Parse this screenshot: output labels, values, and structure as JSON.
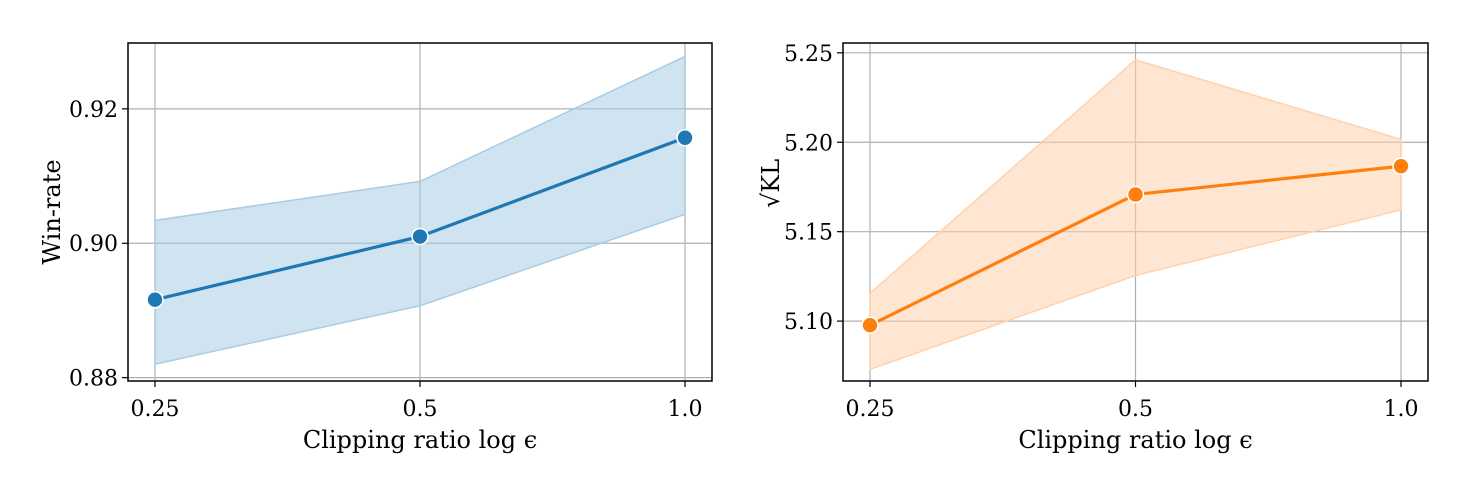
{
  "chart_data": [
    {
      "type": "line",
      "xlabel": "Clipping ratio log ϵ",
      "ylabel": "Win-rate",
      "ylabel_kind": "text",
      "x_tick_labels": [
        "0.25",
        "0.5",
        "1.0"
      ],
      "y_tick_labels": [
        "0.88",
        "0.90",
        "0.92"
      ],
      "y_ticks": [
        0.88,
        0.9,
        0.92
      ],
      "ylim": [
        0.8795,
        0.9298
      ],
      "grid": true,
      "color": "#1f77b4",
      "band_color": "#a9cce3",
      "series": [
        {
          "values": [
            0.8916,
            0.901,
            0.9157
          ],
          "ci_upper": [
            0.9034,
            0.9092,
            0.9278
          ],
          "ci_lower": [
            0.882,
            0.8907,
            0.9043
          ]
        }
      ]
    },
    {
      "type": "line",
      "xlabel": "Clipping ratio log ϵ",
      "ylabel": "√KL",
      "ylabel_kind": "sqrt",
      "x_tick_labels": [
        "0.25",
        "0.5",
        "1.0"
      ],
      "y_tick_labels": [
        "5.10",
        "5.15",
        "5.20",
        "5.25"
      ],
      "y_ticks": [
        5.1,
        5.15,
        5.2,
        5.25
      ],
      "ylim": [
        5.0665,
        5.2555
      ],
      "grid": true,
      "color": "#ff7f0e",
      "band_color": "#ffd2ad",
      "series": [
        {
          "values": [
            5.0977,
            5.1708,
            5.1866
          ],
          "ci_upper": [
            5.1155,
            5.2461,
            5.2016
          ],
          "ci_lower": [
            5.073,
            5.1255,
            5.1622
          ]
        }
      ]
    }
  ]
}
